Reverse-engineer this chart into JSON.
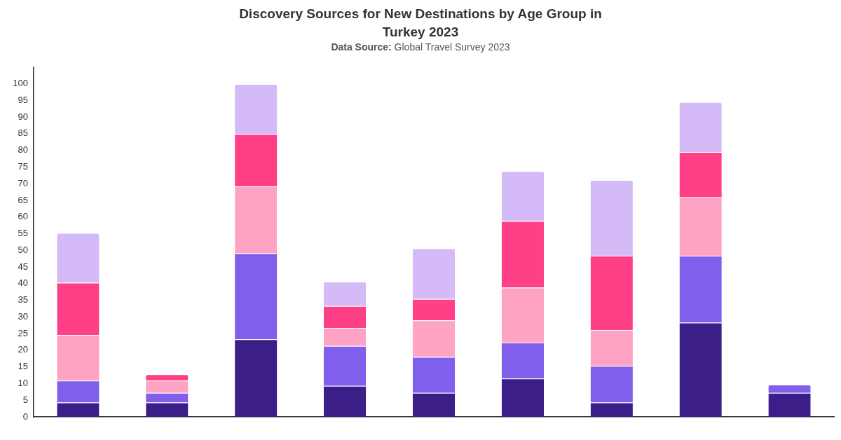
{
  "chart_data": {
    "type": "bar",
    "title": "Discovery Sources for New Destinations by Age Group in Turkey 2023",
    "subtitle": "Data Source: Global Travel Survey 2023",
    "categories": [
      null,
      null,
      null,
      null,
      null,
      null,
      null,
      null,
      null
    ],
    "stacked": true,
    "series": [
      {
        "color": "#3b1e87",
        "values": [
          4.3,
          4.3,
          23.3,
          9.3,
          7.2,
          11.5,
          4.3,
          28.3,
          7.2
        ]
      },
      {
        "color": "#7f5fec",
        "values": [
          6.6,
          2.9,
          25.8,
          12.0,
          10.8,
          10.8,
          11.0,
          20.1,
          2.5
        ]
      },
      {
        "color": "#ffa3c5",
        "values": [
          13.7,
          3.7,
          20.1,
          5.4,
          11.0,
          16.5,
          10.8,
          17.5,
          null
        ]
      },
      {
        "color": "#ff4087",
        "values": [
          15.7,
          1.9,
          15.7,
          6.6,
          6.4,
          20.0,
          22.3,
          13.6,
          null
        ]
      },
      {
        "color": "#d4bbf8",
        "values": [
          14.9,
          null,
          15.0,
          7.3,
          15.2,
          15.0,
          22.7,
          15.0,
          null
        ]
      }
    ],
    "ylim": [
      0,
      105
    ],
    "yticks": [
      0,
      5,
      10,
      15,
      20,
      25,
      30,
      35,
      40,
      45,
      50,
      55,
      60,
      65,
      70,
      75,
      80,
      85,
      90,
      95,
      100
    ]
  }
}
